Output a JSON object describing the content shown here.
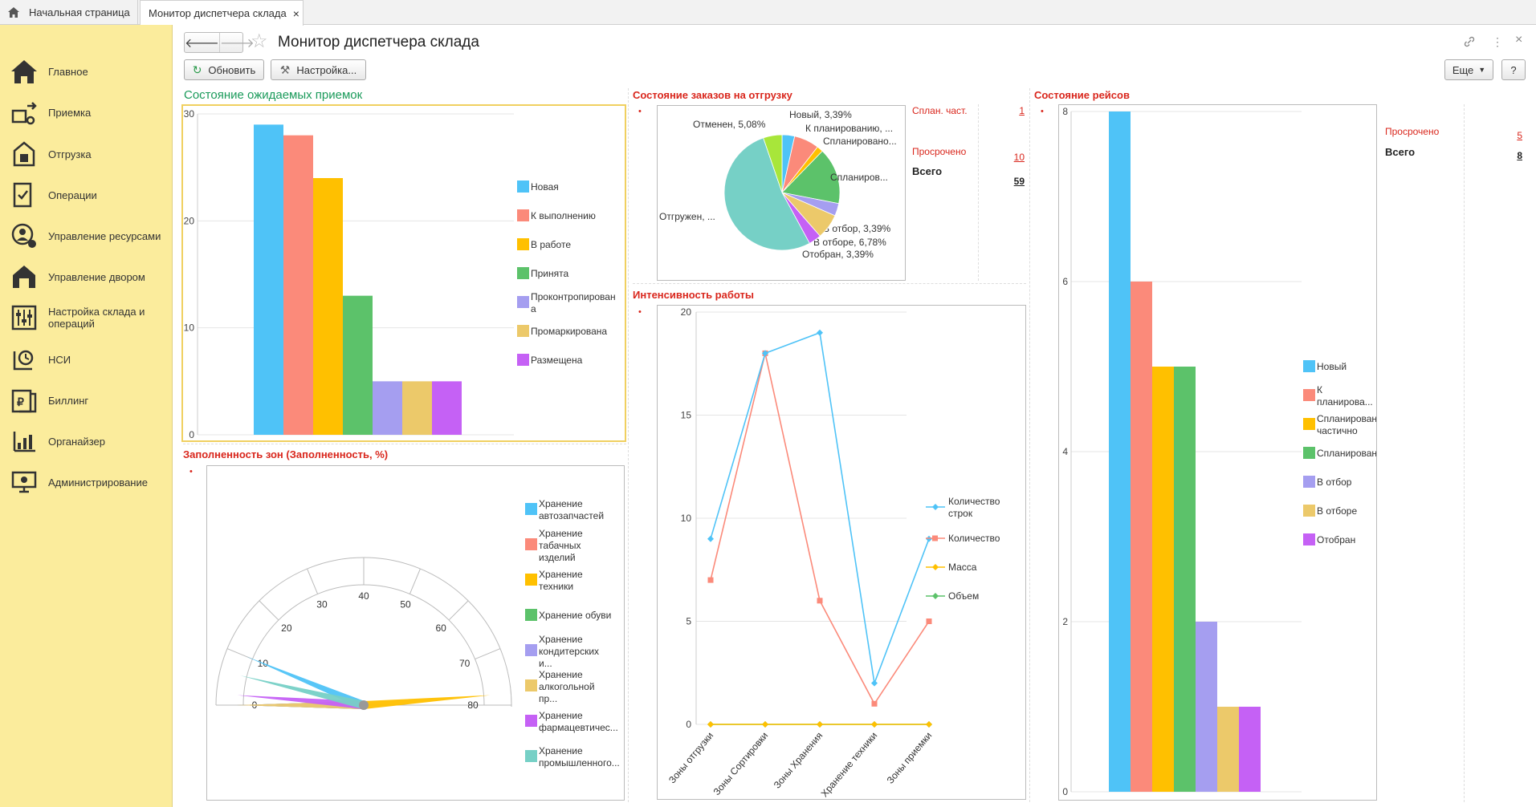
{
  "tabs": {
    "home": "Начальная страница",
    "active": "Монитор диспетчера склада",
    "close": "×"
  },
  "sidebar": {
    "items": [
      {
        "label": "Главное",
        "icon": "home-icon"
      },
      {
        "label": "Приемка",
        "icon": "receiving-icon"
      },
      {
        "label": "Отгрузка",
        "icon": "shipping-icon"
      },
      {
        "label": "Операции",
        "icon": "operations-icon"
      },
      {
        "label": "Управление ресурсами",
        "icon": "resources-icon"
      },
      {
        "label": "Управление двором",
        "icon": "yard-icon"
      },
      {
        "label": "Настройка склада и операций",
        "icon": "settings-sliders-icon"
      },
      {
        "label": "НСИ",
        "icon": "reference-data-icon"
      },
      {
        "label": "Биллинг",
        "icon": "billing-icon"
      },
      {
        "label": "Органайзер",
        "icon": "organizer-icon"
      },
      {
        "label": "Администрирование",
        "icon": "admin-icon"
      }
    ]
  },
  "header": {
    "back": "🡐",
    "forward": "🡒",
    "star": "☆",
    "title": "Монитор диспетчера склада",
    "link_icon": "🔗",
    "more_icon": "⋮",
    "close_icon": "×"
  },
  "toolbar": {
    "refresh": "Обновить",
    "settings": "Настройка...",
    "more": "Еще",
    "help": "?"
  },
  "sections": {
    "receipts": "Состояние ожидаемых приемок",
    "orders": "Состояние заказов на отгрузку",
    "trips": "Состояние рейсов",
    "zones": "Заполненность зон (Заполненность, %)",
    "intensity": "Интенсивность работы"
  },
  "orders_summary": [
    {
      "label": "Сплан. част.",
      "value": "1"
    },
    {
      "label": "Просрочено",
      "value": "10"
    },
    {
      "label": "Всего",
      "value": "59"
    }
  ],
  "trips_summary": [
    {
      "label": "Просрочено",
      "value": "5"
    },
    {
      "label": "Всего",
      "value": "8"
    }
  ],
  "colors": {
    "blue": "#4fc3f7",
    "salmon": "#fb8a7a",
    "orange": "#ffc000",
    "green": "#5cc26a",
    "lavender": "#a59ef0",
    "tan": "#ecc96a",
    "purple": "#c561f5",
    "teal": "#76d0c6",
    "lime": "#a8e63a",
    "red_accent": "#d9261c"
  },
  "chart_data": [
    {
      "id": "receipts",
      "type": "bar",
      "ylim": [
        0,
        30
      ],
      "yticks": [
        "0",
        "10",
        "20",
        "30"
      ],
      "series": [
        {
          "name": "Новая",
          "value": 29
        },
        {
          "name": "К выполнению",
          "value": 28
        },
        {
          "name": "В работе",
          "value": 24
        },
        {
          "name": "Принята",
          "value": 13
        },
        {
          "name": "Проконтропирован а",
          "value": 5
        },
        {
          "name": "Промаркирована",
          "value": 5
        },
        {
          "name": "Размещена",
          "value": 5
        }
      ]
    },
    {
      "id": "orders",
      "type": "pie",
      "slices": [
        {
          "label": "Новый, 3,39%",
          "value": 3.39
        },
        {
          "label": "К планированию, ...",
          "value": 6.78
        },
        {
          "label": "Спланировано...",
          "value": 1.69
        },
        {
          "label": "Спланиров...",
          "value": 15.25
        },
        {
          "label": "В отбор, 3,39%",
          "value": 3.39
        },
        {
          "label": "В отборе, 6,78%",
          "value": 6.78
        },
        {
          "label": "Отобран, 3,39%",
          "value": 3.39
        },
        {
          "label": "Отгружен, ...",
          "value": 50.85
        },
        {
          "label": "Отменен, 5,08%",
          "value": 5.08
        }
      ]
    },
    {
      "id": "intensity",
      "type": "line",
      "categories": [
        "Зоны отгрузки",
        "Зоны Сортировки",
        "Зоны Хранения",
        "Хранение техники",
        "Зоны приемки"
      ],
      "ylim": [
        0,
        20
      ],
      "yticks": [
        "0",
        "5",
        "10",
        "15",
        "20"
      ],
      "series": [
        {
          "name": "Количество строк",
          "values": [
            9,
            18,
            19,
            2,
            9
          ]
        },
        {
          "name": "Количество",
          "values": [
            7,
            18,
            6,
            1,
            5
          ]
        },
        {
          "name": "Масса",
          "values": [
            0,
            0,
            0,
            0,
            0
          ]
        },
        {
          "name": "Объем",
          "values": [
            0,
            0,
            0,
            0,
            0
          ]
        }
      ]
    },
    {
      "id": "trips",
      "type": "bar",
      "ylim": [
        0,
        8
      ],
      "yticks": [
        "0",
        "2",
        "4",
        "6",
        "8"
      ],
      "series": [
        {
          "name": "Новый",
          "value": 8
        },
        {
          "name": "К планирова...",
          "value": 6
        },
        {
          "name": "Спланирован частично",
          "value": 5
        },
        {
          "name": "Спланирован",
          "value": 5
        },
        {
          "name": "В отбор",
          "value": 2
        },
        {
          "name": "В отборе",
          "value": 1
        },
        {
          "name": "Отобран",
          "value": 1
        }
      ]
    },
    {
      "id": "zones",
      "type": "gauge",
      "range": [
        0,
        80
      ],
      "ticks": [
        "0",
        "10",
        "20",
        "30",
        "40",
        "50",
        "60",
        "70",
        "80"
      ],
      "series": [
        {
          "name": "Хранение автозапчастей",
          "value": 10
        },
        {
          "name": "Хранение табачных изделий",
          "value": 0
        },
        {
          "name": "Хранение техники",
          "value": 78
        },
        {
          "name": "Хранение обуви",
          "value": 0
        },
        {
          "name": "Хранение кондитерских и...",
          "value": 0
        },
        {
          "name": "Хранение алкогольной пр...",
          "value": 0
        },
        {
          "name": "Хранение фармацевтичес...",
          "value": 2
        },
        {
          "name": "Хранение промышленного...",
          "value": 6
        }
      ]
    }
  ]
}
